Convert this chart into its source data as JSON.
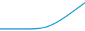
{
  "line_color": "#1a9ed4",
  "line_width": 1.2,
  "background_color": "#ffffff",
  "x_values": [
    0,
    1,
    2,
    3,
    4,
    5,
    6,
    7,
    8,
    9,
    10,
    11,
    12,
    13,
    14,
    15,
    16,
    17,
    18,
    19,
    20
  ],
  "y_values": [
    1.0,
    1.0,
    1.0,
    1.0,
    1.0,
    1.0,
    1.0,
    1.0,
    1.05,
    1.2,
    1.5,
    2.0,
    2.8,
    3.8,
    5.0,
    6.3,
    7.7,
    9.2,
    10.7,
    12.2,
    13.7
  ],
  "ylim": [
    0,
    15
  ],
  "xlim": [
    0,
    20
  ]
}
